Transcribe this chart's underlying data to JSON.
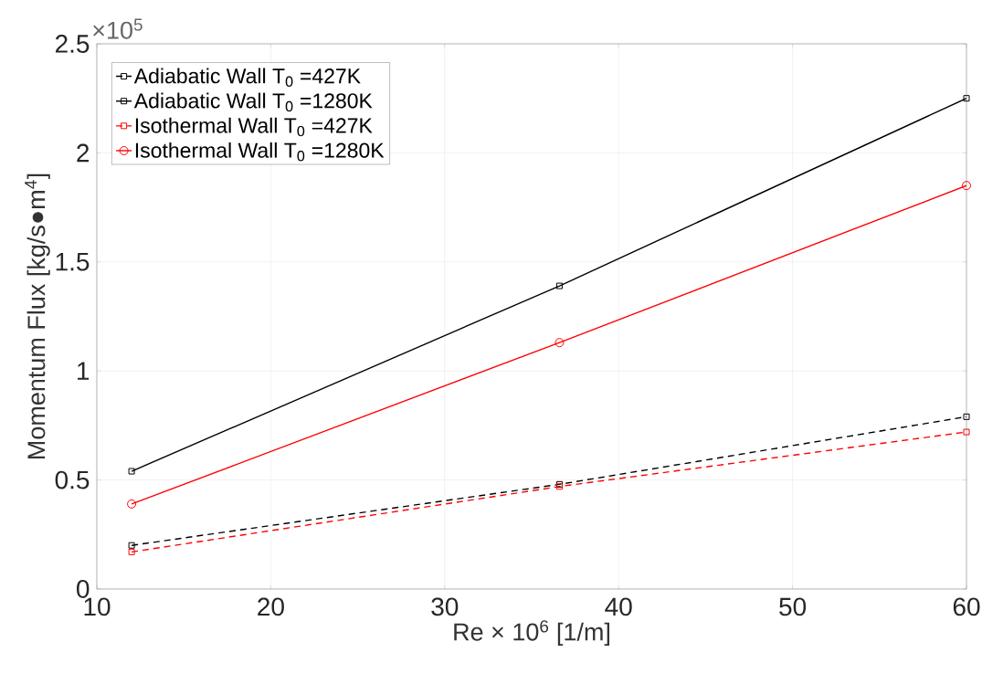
{
  "chart_data": {
    "type": "line",
    "xlabel": "Re × 10$^{6}$ [1/m]",
    "ylabel": "Momentum Flux [kg/s●m$^{4}$]",
    "annotations": [
      "×10$^{5}$"
    ],
    "x": [
      12,
      36.6,
      60
    ],
    "series": [
      {
        "name": "Adiabatic Wall T$_{0}$ =427K",
        "color": "#000000",
        "values": [
          0.2,
          0.48,
          0.79
        ],
        "marker": "square",
        "line_style": "dashed"
      },
      {
        "name": "Adiabatic Wall T$_{0}$ =1280K",
        "color": "#000000",
        "values": [
          0.54,
          1.39,
          2.25
        ],
        "marker": "square",
        "line_style": "solid"
      },
      {
        "name": "Isothermal Wall T$_{0}$ =427K",
        "color": "#ff0000",
        "values": [
          0.17,
          0.47,
          0.72
        ],
        "marker": "square",
        "line_style": "dashed"
      },
      {
        "name": "Isothermal Wall T$_{0}$ =1280K",
        "color": "#ff0000",
        "values": [
          0.39,
          1.13,
          1.85
        ],
        "marker": "circle",
        "line_style": "solid"
      }
    ],
    "xlim": [
      10,
      60
    ],
    "ylim": [
      0,
      2.5
    ],
    "xticks": [
      10,
      20,
      30,
      40,
      50,
      60
    ],
    "yticks": [
      0,
      0.5,
      1,
      1.5,
      2,
      2.5
    ],
    "grid": true,
    "legend": "top left"
  }
}
